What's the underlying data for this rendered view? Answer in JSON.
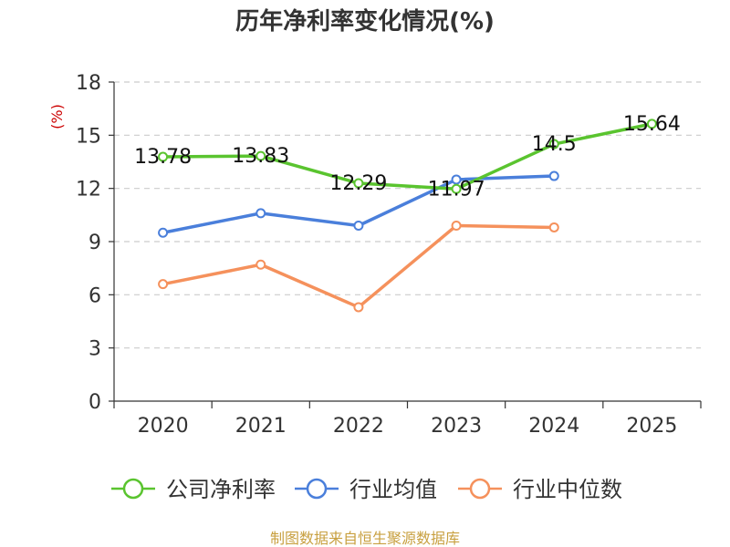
{
  "chart_data": {
    "type": "line",
    "title": "历年净利率变化情况(%)",
    "ylabel": "(%)",
    "ylim": [
      0,
      18
    ],
    "yticks": [
      0,
      3,
      6,
      9,
      12,
      15,
      18
    ],
    "categories": [
      "2020",
      "2021",
      "2022",
      "2023",
      "2024",
      "2025"
    ],
    "grid": true,
    "legend_position": "bottom",
    "series": [
      {
        "name": "公司净利率",
        "color": "#5ac42f",
        "values": [
          13.78,
          13.83,
          12.29,
          11.97,
          14.5,
          15.64
        ],
        "labels": [
          "13.78",
          "13.83",
          "12.29",
          "11.97",
          "14.5",
          "15.64"
        ]
      },
      {
        "name": "行业均值",
        "color": "#4a7fdb",
        "values": [
          9.5,
          10.6,
          9.9,
          12.5,
          12.7,
          null
        ]
      },
      {
        "name": "行业中位数",
        "color": "#f5915c",
        "values": [
          6.6,
          7.7,
          5.3,
          9.9,
          9.8,
          null
        ]
      }
    ],
    "source": "制图数据来自恒生聚源数据库"
  }
}
